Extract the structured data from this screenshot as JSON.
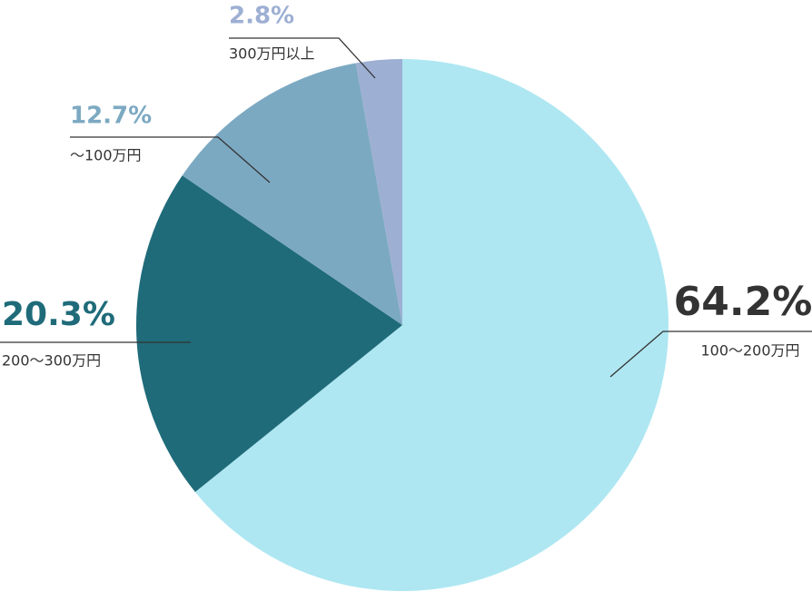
{
  "chart_data": {
    "type": "pie",
    "categories": [
      "100〜200万円",
      "200〜300万円",
      "〜100万円",
      "300万円以上"
    ],
    "values": [
      64.2,
      20.3,
      12.7,
      2.8
    ],
    "value_labels": [
      "64.2%",
      "20.3%",
      "12.7%",
      "2.8%"
    ],
    "colors": [
      "#aee7f2",
      "#1f6b7a",
      "#7ca9c2",
      "#9dafd3"
    ]
  }
}
